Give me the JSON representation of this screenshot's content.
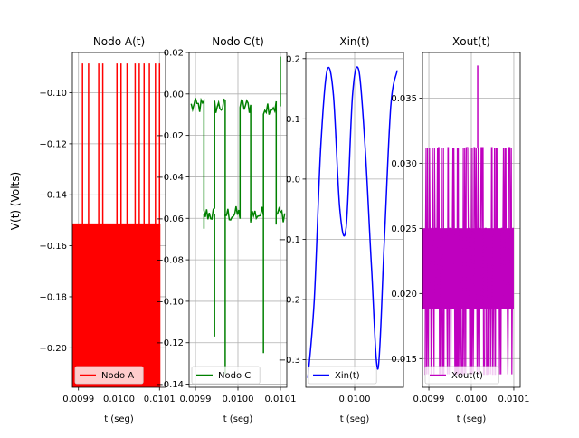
{
  "figure": {
    "ylabel": "V(t) (Volts)"
  },
  "chart_data": [
    {
      "type": "line",
      "title": "Nodo A(t)",
      "xlabel": "t (seg)",
      "ylabel": "V(t) (Volts)",
      "xlim": [
        0.009885,
        0.010115
      ],
      "ylim": [
        -0.2155,
        -0.0842
      ],
      "xticks": [
        0.0099,
        0.01,
        0.0101
      ],
      "xtick_labels": [
        "0.0099",
        "0.0100",
        "0.0101"
      ],
      "yticks": [
        -0.2,
        -0.18,
        -0.16,
        -0.14,
        -0.12,
        -0.1
      ],
      "ytick_labels": [
        "−0.20",
        "−0.18",
        "−0.16",
        "−0.14",
        "−0.12",
        "−0.10"
      ],
      "grid": true,
      "legend_position": "lower-left",
      "color": "#ff0000",
      "series": [
        {
          "name": "Nodo A",
          "signal": "pulse_block",
          "base": -0.1515,
          "low": -0.2155,
          "high": -0.0885,
          "spikes": [
            0.00991,
            0.009925,
            0.00995,
            0.00996,
            0.009995,
            0.010005,
            0.01002,
            0.01004,
            0.01005,
            0.010062,
            0.010075,
            0.01009,
            0.0101
          ]
        }
      ]
    },
    {
      "type": "line",
      "title": "Nodo C(t)",
      "xlabel": "t (seg)",
      "ylabel": "",
      "xlim": [
        0.009885,
        0.010115
      ],
      "ylim": [
        -0.1415,
        0.02
      ],
      "xticks": [
        0.0099,
        0.01,
        0.0101
      ],
      "xtick_labels": [
        "0.0099",
        "0.0100",
        "0.0101"
      ],
      "yticks": [
        -0.14,
        -0.12,
        -0.1,
        -0.08,
        -0.06,
        -0.04,
        -0.02,
        0.0,
        0.02
      ],
      "ytick_labels": [
        "−0.14",
        "−0.12",
        "−0.10",
        "−0.08",
        "−0.06",
        "−0.04",
        "−0.02",
        "0.00",
        "0.02"
      ],
      "grid": true,
      "legend_position": "lower-left",
      "color": "#008000",
      "series": [
        {
          "name": "Nodo C",
          "signal": "square_noisy",
          "segments": [
            {
              "x0": 0.00989,
              "x1": 0.00992,
              "v": -0.006
            },
            {
              "x0": 0.00992,
              "x1": 0.009945,
              "v": -0.058
            },
            {
              "x0": 0.009945,
              "x1": 0.00997,
              "v": -0.006
            },
            {
              "x0": 0.00997,
              "x1": 0.010005,
              "v": -0.058
            },
            {
              "x0": 0.010005,
              "x1": 0.01003,
              "v": -0.006
            },
            {
              "x0": 0.01003,
              "x1": 0.01006,
              "v": -0.058
            },
            {
              "x0": 0.01006,
              "x1": 0.01009,
              "v": -0.006
            },
            {
              "x0": 0.01009,
              "x1": 0.01011,
              "v": -0.058
            }
          ],
          "spikes": [
            {
              "x": 0.00992,
              "v": -0.065
            },
            {
              "x": 0.009945,
              "v": -0.117
            },
            {
              "x": 0.00997,
              "v": -0.135
            },
            {
              "x": 0.01003,
              "v": -0.062
            },
            {
              "x": 0.01006,
              "v": -0.125
            },
            {
              "x": 0.01009,
              "v": -0.063
            },
            {
              "x": 0.0101,
              "v": 0.018
            }
          ]
        }
      ]
    },
    {
      "type": "line",
      "title": "Xin(t)",
      "xlabel": "t (seg)",
      "ylabel": "",
      "xlim": [
        0.009885,
        0.010115
      ],
      "ylim": [
        -0.3457,
        0.2102
      ],
      "xticks": [
        0.01
      ],
      "xtick_labels": [
        "0.0100"
      ],
      "yticks": [
        -0.3,
        -0.2,
        -0.1,
        0.0,
        0.1,
        0.2
      ],
      "ytick_labels": [
        "−0.3",
        "−0.2",
        "−0.1",
        "0.0",
        "0.1",
        "0.2"
      ],
      "grid": true,
      "legend_position": "lower-left",
      "color": "#0000ff",
      "series": [
        {
          "name": "Xin(t)",
          "signal": "sine_sum",
          "x": [
            0.00989,
            0.009905,
            0.00992,
            0.009935,
            0.00995,
            0.009965,
            0.00998,
            0.009995,
            0.01001,
            0.010025,
            0.01004,
            0.010055,
            0.01007,
            0.010085,
            0.0101
          ],
          "y": [
            -0.33,
            -0.2,
            0.05,
            0.18,
            0.14,
            -0.05,
            -0.08,
            0.14,
            0.18,
            0.05,
            -0.15,
            -0.315,
            -0.1,
            0.12,
            0.18
          ]
        }
      ]
    },
    {
      "type": "line",
      "title": "Xout(t)",
      "xlabel": "t (seg)",
      "ylabel": "",
      "xlim": [
        0.009885,
        0.010115
      ],
      "ylim": [
        0.0128,
        0.0385
      ],
      "xticks": [
        0.0099,
        0.01,
        0.0101
      ],
      "xtick_labels": [
        "0.0099",
        "0.0100",
        "0.0101"
      ],
      "yticks": [
        0.015,
        0.02,
        0.025,
        0.03,
        0.035
      ],
      "ytick_labels": [
        "0.015",
        "0.020",
        "0.025",
        "0.030",
        "0.035"
      ],
      "grid": true,
      "legend_position": "lower-left",
      "color": "#bf00bf",
      "series": [
        {
          "name": "Xout(t)",
          "signal": "quantized_noise",
          "levels": [
            0.0138,
            0.0188,
            0.025,
            0.0312
          ],
          "peak": {
            "x": 0.010015,
            "v": 0.0375
          }
        }
      ]
    }
  ]
}
